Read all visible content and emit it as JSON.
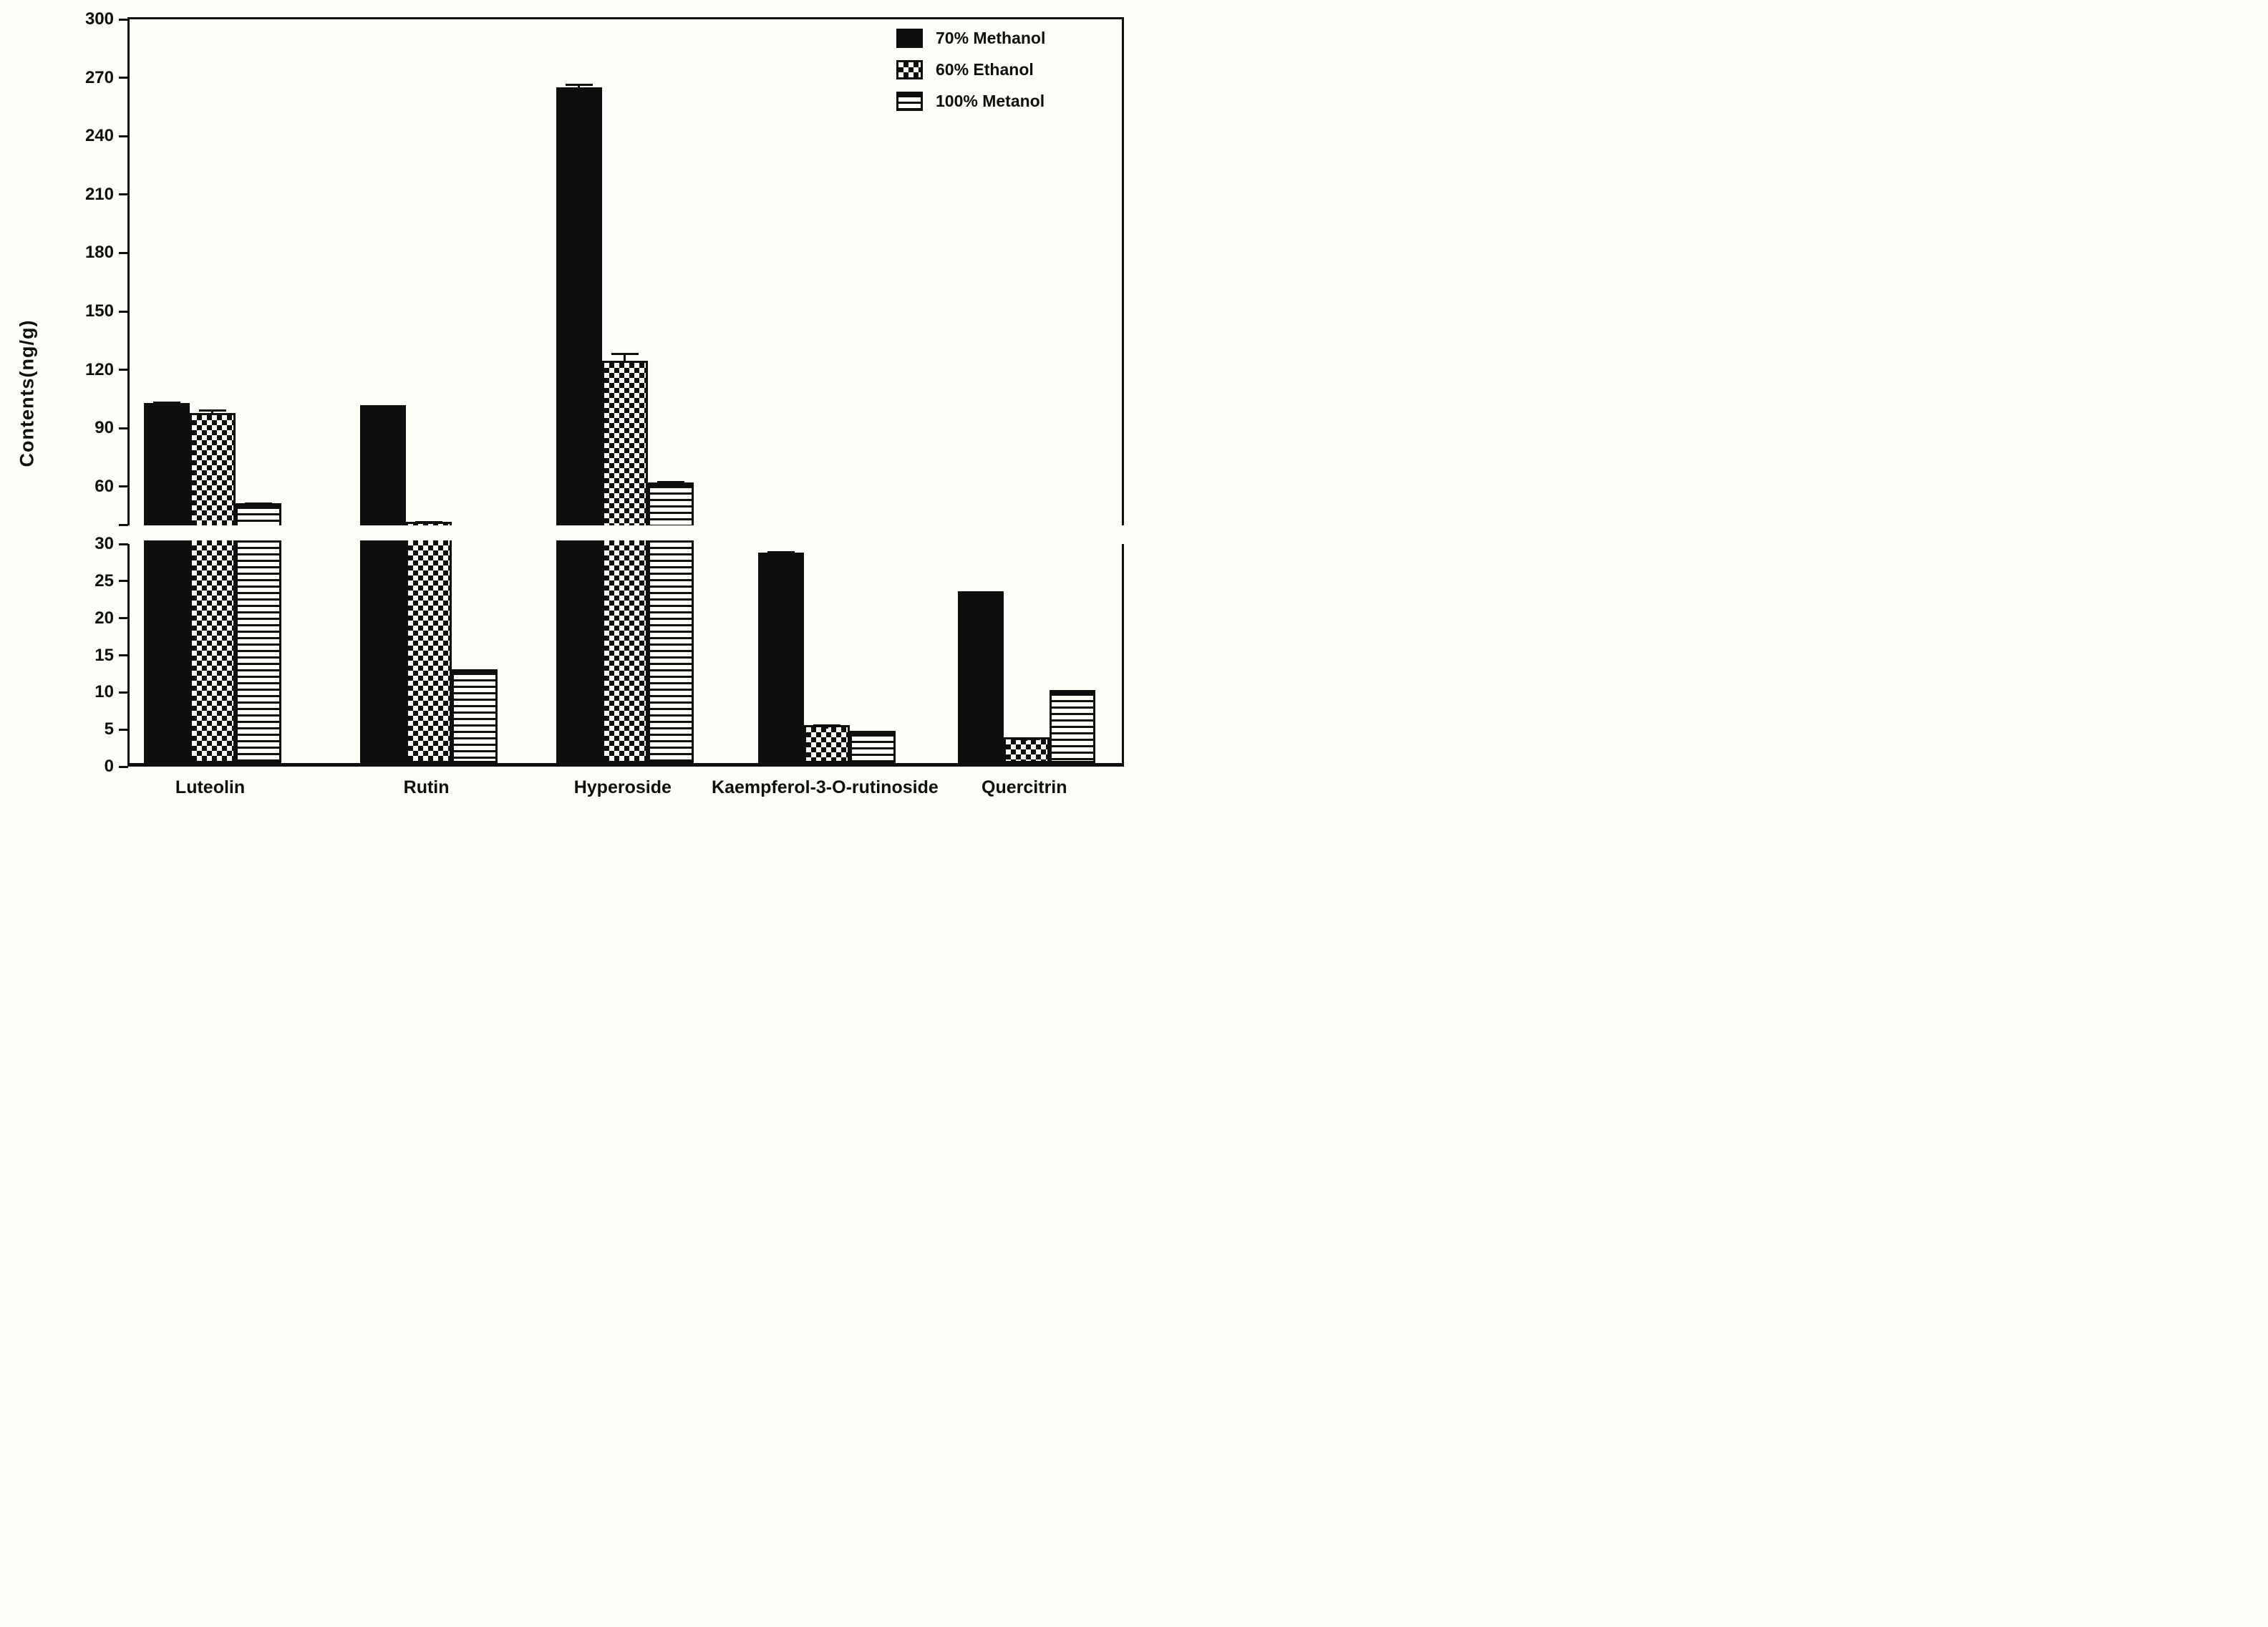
{
  "figure": {
    "background": "#fffdf7",
    "ink": "#0e0e0e"
  },
  "y_axis": {
    "title": "Contents(ng/g)",
    "top_panel": {
      "min": 39,
      "max": 300,
      "ticks": [
        300,
        270,
        240,
        210,
        180,
        150,
        120,
        90,
        60
      ]
    },
    "bottom_panel": {
      "min": 0,
      "max": 30,
      "ticks": [
        30,
        25,
        20,
        15,
        10,
        5,
        0
      ]
    }
  },
  "legend": [
    {
      "label": "70% Methanol",
      "pattern": "solid"
    },
    {
      "label": "60% Ethanol",
      "pattern": "check"
    },
    {
      "label": "100% Metanol",
      "pattern": "hlines"
    }
  ],
  "chart_data": {
    "type": "bar",
    "title": "",
    "xlabel": "",
    "ylabel": "Contents(ng/g)",
    "axis_break": {
      "lower_range": [
        0,
        30
      ],
      "upper_range": [
        39,
        300
      ]
    },
    "grid": false,
    "legend_position": "top-right",
    "categories": [
      "Luteolin",
      "Rutin",
      "Hyperoside",
      "Kaempferol-3-O-rutinoside",
      "Quercitrin"
    ],
    "series": [
      {
        "name": "70% Methanol",
        "pattern": "solid",
        "values": [
          102,
          100.6,
          264,
          28.4,
          23.2
        ],
        "errors": [
          1.0,
          0.6,
          2.5,
          0.5,
          0.3
        ]
      },
      {
        "name": "60% Ethanol",
        "pattern": "check",
        "values": [
          96.9,
          41.0,
          123.5,
          5.1,
          3.5
        ],
        "errors": [
          2.3,
          0.7,
          4.7,
          0.45,
          0.25
        ]
      },
      {
        "name": "100% Metanol",
        "pattern": "hlines",
        "values": [
          50.5,
          12.6,
          61.0,
          4.3,
          9.8
        ],
        "errors": [
          0.7,
          0.35,
          1.4,
          0.3,
          0.3
        ]
      }
    ]
  }
}
